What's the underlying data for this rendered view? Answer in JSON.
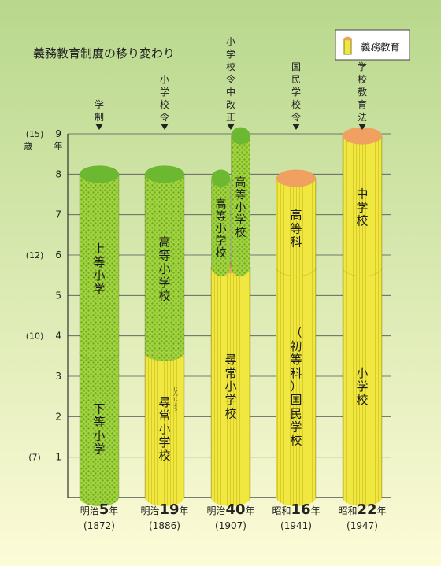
{
  "title": "義務教育制度の移り変わり",
  "legend": {
    "label": "義務教育",
    "swatch_top": "#f0a060",
    "swatch_body": "#f0e840"
  },
  "colors": {
    "bg_top": "#b8d88c",
    "bg_bottom": "#fdfbd8",
    "green_fill": "#a4d43c",
    "green_dots": "#6aa82c",
    "green_top": "#6cb830",
    "yellow_fill": "#f0e840",
    "yellow_stripe": "#d8cc28",
    "orange_top": "#f0a060"
  },
  "axis": {
    "ticks": [
      {
        "value": 1,
        "label": "1",
        "age": "(7)"
      },
      {
        "value": 2,
        "label": "2",
        "age": ""
      },
      {
        "value": 3,
        "label": "3",
        "age": ""
      },
      {
        "value": 4,
        "label": "4",
        "age": "(10)"
      },
      {
        "value": 5,
        "label": "5",
        "age": ""
      },
      {
        "value": 6,
        "label": "6",
        "age": "(12)"
      },
      {
        "value": 7,
        "label": "7",
        "age": ""
      },
      {
        "value": 8,
        "label": "8",
        "age": ""
      },
      {
        "value": 9,
        "label": "9",
        "age": "(15)"
      }
    ],
    "age_label": "歳",
    "year_label": "年"
  },
  "chart_data": {
    "type": "bar",
    "title": "義務教育制度の移り変わり",
    "ylim": [
      0,
      9
    ],
    "columns": [
      {
        "law": "学制",
        "era": "明治",
        "num": "5",
        "suffix": "年",
        "year": "(1872)",
        "segments": [
          {
            "label": "下等小学",
            "from": 0,
            "to": 3.6,
            "compulsory": false
          },
          {
            "label": "上等小学",
            "from": 3.6,
            "to": 8.0,
            "compulsory": false
          }
        ]
      },
      {
        "law": "小学校令",
        "era": "明治",
        "num": "19",
        "suffix": "年",
        "year": "(1886)",
        "segments": [
          {
            "label": "尋常小学校",
            "ruby": "じんじょう",
            "from": 0,
            "to": 3.6,
            "compulsory": true
          },
          {
            "label": "高等小学校",
            "from": 3.6,
            "to": 8.0,
            "compulsory": false
          }
        ]
      },
      {
        "law": "小学校令中改正",
        "era": "明治",
        "num": "40",
        "suffix": "年",
        "year": "(1907)",
        "segments": [
          {
            "label": "尋常小学校",
            "from": 0,
            "to": 5.7,
            "compulsory": true
          }
        ],
        "branches": [
          {
            "label": "高等小学校",
            "from": 5.7,
            "to": 7.9,
            "compulsory": false
          },
          {
            "label": "高等小学校",
            "from": 5.7,
            "to": 8.95,
            "compulsory": false
          }
        ]
      },
      {
        "law": "国民学校令",
        "era": "昭和",
        "num": "16",
        "suffix": "年",
        "year": "(1941)",
        "segments": [
          {
            "label": "（初等科）国民学校",
            "from": 0,
            "to": 5.7,
            "compulsory": true
          },
          {
            "label": "高等科",
            "from": 5.7,
            "to": 7.9,
            "compulsory": true
          }
        ]
      },
      {
        "law": "学校教育法",
        "era": "昭和",
        "num": "22",
        "suffix": "年",
        "year": "(1947)",
        "segments": [
          {
            "label": "小学校",
            "from": 0,
            "to": 5.7,
            "compulsory": true
          },
          {
            "label": "中学校",
            "from": 5.7,
            "to": 8.95,
            "compulsory": true
          }
        ]
      }
    ]
  }
}
